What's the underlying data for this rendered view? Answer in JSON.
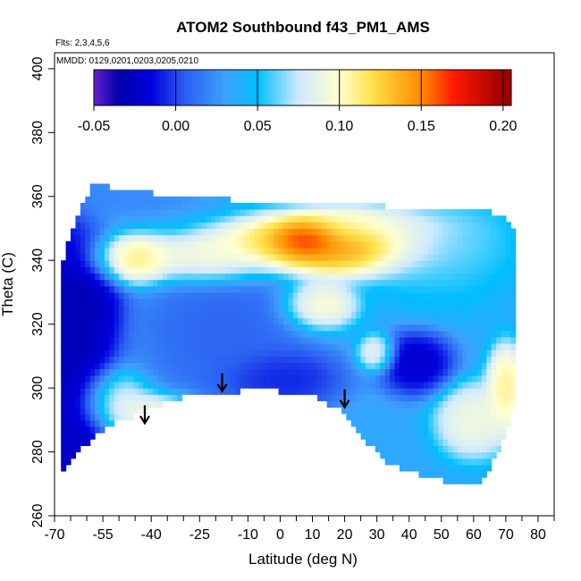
{
  "chart_data": {
    "type": "heatmap",
    "title": "ATOM2 Southbound f43_PM1_AMS",
    "annotations": {
      "flights": "Flts: 2,3,4,5,6",
      "dates": "MMDD: 0129,0201,0203,0205,0210"
    },
    "xlabel": "Latitude (deg N)",
    "ylabel": "Theta (C)",
    "xlim": [
      -70,
      85
    ],
    "ylim": [
      260,
      405
    ],
    "x_ticks": [
      -70,
      -55,
      -40,
      -25,
      -10,
      0,
      10,
      20,
      30,
      40,
      50,
      60,
      70,
      80
    ],
    "x_ticks_minor": [
      -65,
      -60,
      -50,
      -45,
      -35,
      -30,
      -20,
      -15,
      -5,
      5,
      15,
      25,
      35,
      45,
      55,
      65,
      75,
      85
    ],
    "y_ticks": [
      260,
      280,
      300,
      320,
      340,
      360,
      380,
      400
    ],
    "colorbar": {
      "range": [
        -0.05,
        0.205
      ],
      "ticks": [
        -0.05,
        0.0,
        0.05,
        0.1,
        0.15,
        0.2
      ],
      "tick_labels": [
        "-0.05",
        "0.00",
        "0.05",
        "0.10",
        "0.15",
        "0.20"
      ],
      "stops": [
        {
          "v": -0.055,
          "c": "#8a2be2"
        },
        {
          "v": -0.035,
          "c": "#0000aa"
        },
        {
          "v": -0.015,
          "c": "#0000dd"
        },
        {
          "v": 0.005,
          "c": "#2a5cf0"
        },
        {
          "v": 0.03,
          "c": "#3fa0ff"
        },
        {
          "v": 0.05,
          "c": "#00bfff"
        },
        {
          "v": 0.075,
          "c": "#cfe9ff"
        },
        {
          "v": 0.1,
          "c": "#ffffd0"
        },
        {
          "v": 0.12,
          "c": "#ffe24a"
        },
        {
          "v": 0.15,
          "c": "#ff8a00"
        },
        {
          "v": 0.17,
          "c": "#ff1a00"
        },
        {
          "v": 0.2,
          "c": "#a00000"
        }
      ]
    },
    "field_envelope": {
      "lat": [
        -68,
        -65,
        -62,
        -58,
        -55,
        -50,
        -45,
        -40,
        -30,
        -25,
        -20,
        -15,
        -10,
        0,
        10,
        20,
        27,
        33,
        40,
        50,
        60,
        62,
        66,
        70,
        72
      ],
      "theta_bottom": [
        274,
        278,
        282,
        285,
        288,
        291,
        292,
        295,
        298,
        298,
        298,
        299,
        301,
        300,
        299,
        293,
        284,
        278,
        275,
        272,
        270,
        270,
        278,
        287,
        294
      ],
      "theta_top": [
        336,
        348,
        356,
        363,
        363,
        360,
        361,
        360,
        360,
        359,
        359,
        358,
        358,
        357,
        357,
        357,
        357,
        356,
        356,
        356,
        355,
        355,
        354,
        352,
        350
      ]
    },
    "field_features": [
      {
        "lat": -68,
        "theta": 308,
        "value": -0.04,
        "sx": 7,
        "sy": 24
      },
      {
        "lat": -60,
        "theta": 325,
        "value": -0.035,
        "sx": 6,
        "sy": 10
      },
      {
        "lat": -64,
        "theta": 290,
        "value": -0.025,
        "sx": 6,
        "sy": 14
      },
      {
        "lat": -45,
        "theta": 340,
        "value": 0.125,
        "sx": 7,
        "sy": 4
      },
      {
        "lat": -22,
        "theta": 340,
        "value": 0.11,
        "sx": 9,
        "sy": 4
      },
      {
        "lat": 15,
        "theta": 345,
        "value": 0.16,
        "sx": 18,
        "sy": 5
      },
      {
        "lat": 8,
        "theta": 347,
        "value": 0.19,
        "sx": 5,
        "sy": 3
      },
      {
        "lat": 28,
        "theta": 351,
        "value": 0.1,
        "sx": 14,
        "sy": 3
      },
      {
        "lat": 12,
        "theta": 326,
        "value": 0.11,
        "sx": 6,
        "sy": 4
      },
      {
        "lat": -18,
        "theta": 318,
        "value": 0.005,
        "sx": 14,
        "sy": 12
      },
      {
        "lat": 0,
        "theta": 303,
        "value": -0.015,
        "sx": 10,
        "sy": 5
      },
      {
        "lat": 30,
        "theta": 311,
        "value": 0.1,
        "sx": 3,
        "sy": 3
      },
      {
        "lat": 42,
        "theta": 308,
        "value": -0.03,
        "sx": 6,
        "sy": 5
      },
      {
        "lat": 60,
        "theta": 290,
        "value": 0.1,
        "sx": 6,
        "sy": 6
      },
      {
        "lat": 70,
        "theta": 300,
        "value": 0.12,
        "sx": 3,
        "sy": 7
      },
      {
        "lat": -52,
        "theta": 296,
        "value": 0.09,
        "sx": 6,
        "sy": 5
      },
      {
        "lat": -40,
        "theta": 293,
        "value": 0.1,
        "sx": 8,
        "sy": 3
      },
      {
        "lat": -48,
        "theta": 360,
        "value": 0.02,
        "sx": 12,
        "sy": 3
      },
      {
        "lat": 50,
        "theta": 345,
        "value": 0.06,
        "sx": 12,
        "sy": 10
      }
    ],
    "field_background": 0.035,
    "arrows": [
      {
        "lat": -42,
        "theta": 289
      },
      {
        "lat": -18,
        "theta": 299
      },
      {
        "lat": 20,
        "theta": 294
      }
    ]
  }
}
